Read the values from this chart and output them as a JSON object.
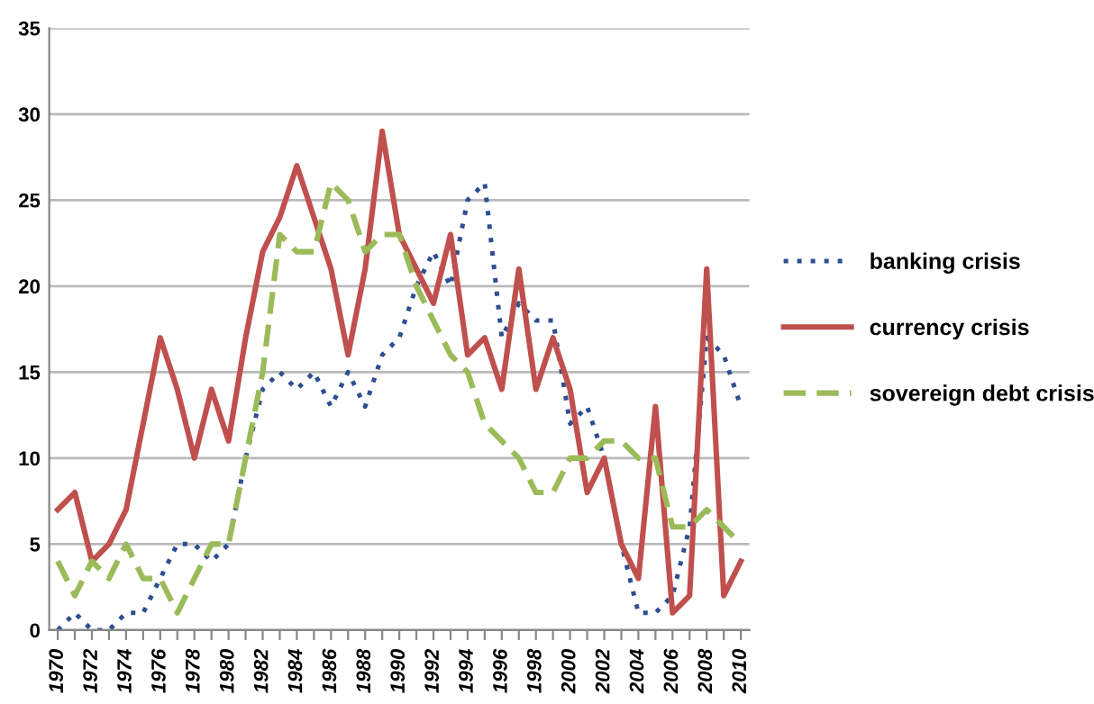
{
  "chart_data": {
    "type": "line",
    "categories": [
      "1970",
      null,
      "1972",
      null,
      "1974",
      null,
      "1976",
      null,
      "1978",
      null,
      "1980",
      null,
      "1982",
      null,
      "1984",
      null,
      "1986",
      null,
      "1988",
      null,
      "1990",
      null,
      "1992",
      null,
      "1994",
      null,
      "1996",
      null,
      "1998",
      null,
      "2000",
      null,
      "2002",
      null,
      "2004",
      null,
      "2006",
      null,
      "2008",
      null,
      "2010"
    ],
    "series": [
      {
        "name": "banking crisis",
        "color": "#2e4f8f",
        "line_style": "dotted",
        "values": [
          0,
          1,
          0,
          0,
          1,
          1,
          3,
          5,
          5,
          4,
          5,
          10,
          14,
          15,
          14,
          15,
          13,
          15,
          13,
          16,
          17,
          20,
          22,
          20,
          25,
          26,
          17,
          19,
          18,
          18,
          12,
          13,
          10,
          5,
          1,
          1,
          2,
          6,
          17,
          16,
          13
        ]
      },
      {
        "name": "currency crisis",
        "color": "#c0504d",
        "line_style": "solid",
        "values": [
          7,
          8,
          4,
          5,
          7,
          12,
          17,
          14,
          10,
          14,
          11,
          17,
          22,
          24,
          27,
          24,
          21,
          16,
          21,
          29,
          23,
          21,
          19,
          23,
          16,
          17,
          14,
          21,
          14,
          17,
          14,
          8,
          10,
          5,
          3,
          13,
          1,
          2,
          21,
          2,
          4
        ]
      },
      {
        "name": "sovereign debt crisis",
        "color": "#9bbb59",
        "line_style": "dashed",
        "values": [
          4,
          2,
          4,
          3,
          5,
          3,
          3,
          1,
          3,
          5,
          5,
          10,
          15,
          23,
          22,
          22,
          26,
          25,
          22,
          23,
          23,
          20,
          18,
          16,
          15,
          12,
          11,
          10,
          8,
          8,
          10,
          10,
          11,
          11,
          10,
          10,
          6,
          6,
          7,
          6,
          5
        ]
      }
    ],
    "ylim": [
      0,
      35
    ],
    "yticks": [
      0,
      5,
      10,
      15,
      20,
      25,
      30,
      35
    ],
    "grid": "y",
    "legend": "right",
    "marker": "none"
  }
}
